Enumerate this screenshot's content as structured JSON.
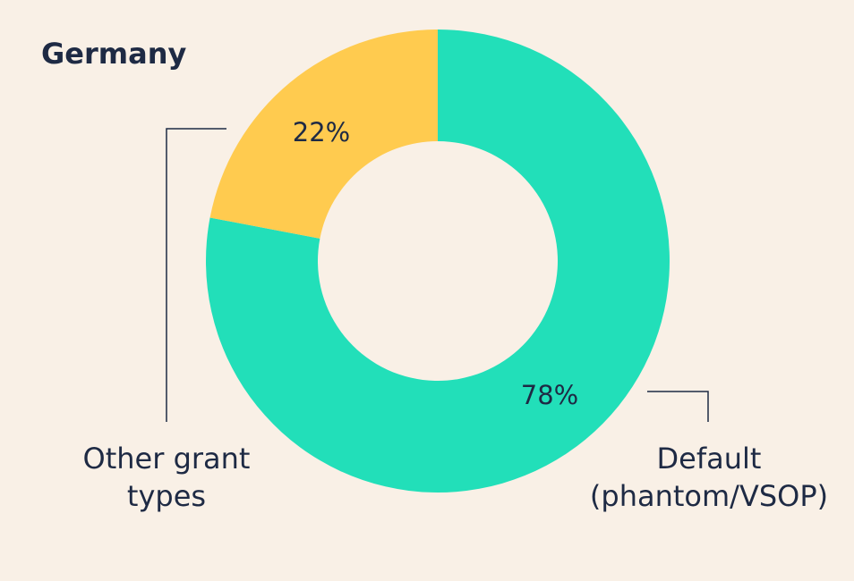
{
  "chart_data": {
    "type": "pie",
    "title": "Germany",
    "donut": true,
    "slices": [
      {
        "category": "Default (phantom/VSOP)",
        "label_lines": [
          "Default",
          "(phantom/VSOP)"
        ],
        "value": 78,
        "value_label": "78%",
        "color": "#22dfb9"
      },
      {
        "category": "Other grant types",
        "label_lines": [
          "Other grant",
          "types"
        ],
        "value": 22,
        "value_label": "22%",
        "color": "#ffcb4f"
      }
    ]
  },
  "colors": {
    "background": "#f9f0e6",
    "text": "#1e2a44",
    "leader_lines": "#1e2a44"
  }
}
